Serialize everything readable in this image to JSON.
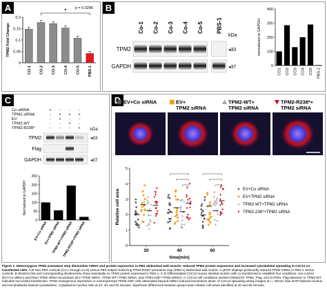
{
  "panels": {
    "a": "A",
    "b": "B",
    "c": "C",
    "d": "D"
  },
  "panelA": {
    "chart_data": {
      "type": "bar",
      "ylabel": "TPM2 Fold Change",
      "ylim": [
        0,
        0.2
      ],
      "yticks": [
        "0",
        "0.05",
        "0.1",
        "0.15",
        "0.2"
      ],
      "categories": [
        "CO-1",
        "CO-2",
        "CO-3",
        "CO-4",
        "CO-5",
        "PBS-1"
      ],
      "values": [
        0.148,
        0.177,
        0.172,
        0.153,
        0.108,
        0.041
      ],
      "colors": [
        "#8c8c8c",
        "#8c8c8c",
        "#8c8c8c",
        "#8c8c8c",
        "#8c8c8c",
        "#e8141e"
      ],
      "annotation_p": "p = 0.0286",
      "annotation_star": "*"
    }
  },
  "panelB": {
    "blot": {
      "lanes": [
        "Co-1",
        "Co-2",
        "Co-3",
        "Co-4",
        "Co-5",
        "PBS-1"
      ],
      "rows": [
        "TPM2",
        "GAPDH"
      ],
      "kda_header": "kDa",
      "kda": [
        "33",
        "37"
      ]
    },
    "chart_data": {
      "type": "bar",
      "ylabel": "normalized to GAPDH",
      "ylim": [
        0,
        400
      ],
      "yticks": [
        "0",
        "100",
        "200",
        "300",
        "400"
      ],
      "categories": [
        "CO1",
        "CO2",
        "CO3",
        "CO4",
        "CO5",
        "PBS-1"
      ],
      "values": [
        100,
        285,
        130,
        200,
        290,
        3
      ],
      "color": "#000000"
    }
  },
  "panelC": {
    "conditions": {
      "labels": [
        "Co siRNA",
        "TPM2 siRNA",
        "EV",
        "TPM2-WT",
        "TPM2-R238*"
      ],
      "signs": [
        [
          "+",
          "-",
          "-",
          "-"
        ],
        [
          "-",
          "+",
          "+",
          "+"
        ],
        [
          "-",
          "+",
          "-",
          "-"
        ],
        [
          "-",
          "-",
          "+",
          "-"
        ],
        [
          "-",
          "-",
          "-",
          "+"
        ]
      ]
    },
    "blot": {
      "rows": [
        "TPM2",
        "Flag",
        "GAPDH"
      ],
      "kda_header": "kDa",
      "kda": [
        "33",
        "37"
      ]
    },
    "chart_data": {
      "type": "bar",
      "ylabel": "Normalized to GAPDH",
      "ylim": [
        0,
        250
      ],
      "yticks": [
        "0",
        "50",
        "100",
        "150",
        "200",
        "250"
      ],
      "categories": [
        "EV+Co siRNA",
        "EV+TPM2 siRNA",
        "TPM2-WT+TPM2 siRNA",
        "TPM2-R238*+TPM2 siRNA"
      ],
      "values": [
        100,
        55,
        195,
        18
      ],
      "color": "#000000"
    }
  },
  "panelD": {
    "images": [
      {
        "line1": "EV+Co siRNA",
        "line2": ""
      },
      {
        "line1": "EV+",
        "line2": "TPM2 siRNA"
      },
      {
        "line1": "TPM2-WT+",
        "line2": "TPM2 siRNA"
      },
      {
        "line1": "TPM2-R238*+",
        "line2": "TPM2 siRNA"
      }
    ],
    "chart_data": {
      "type": "scatter",
      "xlabel": "time(min)",
      "ylabel": "Relative cell area",
      "ylim": [
        0,
        5
      ],
      "yticks": [
        "0",
        "1",
        "2",
        "3",
        "4",
        "5"
      ],
      "categories": [
        "20",
        "40",
        "60"
      ],
      "series": [
        {
          "name": "EV+Co siRNA",
          "color": "#5a5a5a",
          "means": [
            2.0,
            2.15,
            1.98
          ]
        },
        {
          "name": "EV+TPM2 siRNA",
          "color": "#f0a020",
          "means": [
            2.65,
            2.45,
            2.55
          ]
        },
        {
          "name": "TPM2-WT+TPM2 siRNA",
          "color": "#a8a8a8",
          "means": [
            2.25,
            2.2,
            2.25
          ]
        },
        {
          "name": "TPM2-238*+TPM2 siRNA",
          "color": "#d0121e",
          "means": [
            2.6,
            2.75,
            2.9
          ]
        }
      ]
    }
  },
  "caption": {
    "bold": "Figure 1: Heterozygous TPM2 premature stop diminishes mRNA and protein expression in PBS abdominal wall muscle; reduced TPM2 protein expression and increased cytoskeletal spreading in C2C12 co-transfected cells.",
    "text": " A-B Non-PBS controls (Co-1 through Co-5) versus PBS subject harboring TPM2:R238* premature stop (PBS-1) abdominal wall muscle. A qPCR displays profoundly reduced TPM2 mRNA in PBS-1 versus controls. B Western blot and corresponding densitometry show essentially no TPM2 protein expressed in PBS-1. C-D Differentiated C2C12 mouse skeletal muscle cells co-transfected to establish four conditions: one control (EV+Co siRNA) and three TPM2 siRNA knockdown (EV+TPM2 siRNA, TPM2-WT+TPM2 siRNA, and TPM2-238*+TPM2 siRNA). C C2C12 cell conditions western-blotted for TPM2, Flag, and GAPDH. Flag detection in TPM2-WT indicates successful transfection. TPM2 endogenous expression in overexpressed TPM2-238* cells attenuated beyond siRNA-induced knockdown alone. D C2C12 spreading assay images at t = 60min; blue DAPI-stained nucleus and red phalloidin-stained cytoskeleton. Cytoplasmic:nuclear ratio at 20, 40, and 60 minutes. Significant differences between group-mean relative cell areas identified at 40 and 60 minutes."
  }
}
